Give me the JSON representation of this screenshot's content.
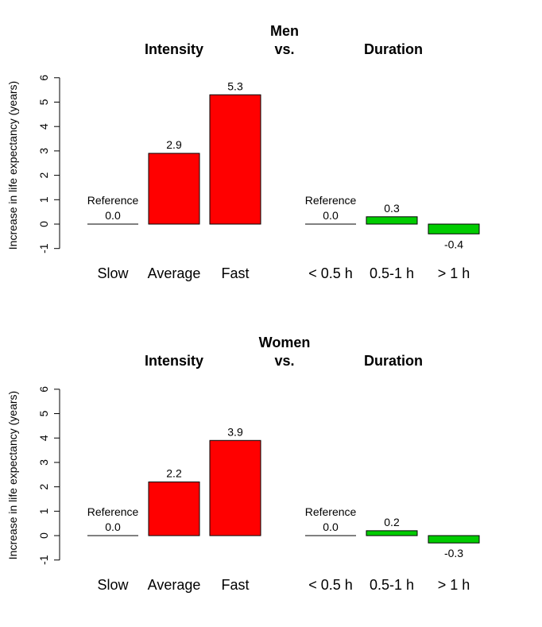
{
  "chart_data": [
    {
      "type": "bar",
      "title": "Men",
      "group_titles": [
        "Intensity",
        "vs.",
        "Duration"
      ],
      "ylabel": "Increase in life expectancy (years)",
      "ylim": [
        -1,
        6
      ],
      "yticks": [
        "-1",
        "0",
        "1",
        "2",
        "3",
        "4",
        "5",
        "6"
      ],
      "colors": {
        "intensity": "#ff0000",
        "duration": "#00cc00",
        "reference": "#000000"
      },
      "bars": [
        {
          "category": "Slow",
          "value": 0.0,
          "label": "0.0",
          "note": "Reference",
          "group": "intensity"
        },
        {
          "category": "Average",
          "value": 2.9,
          "label": "2.9",
          "note": "",
          "group": "intensity"
        },
        {
          "category": "Fast",
          "value": 5.3,
          "label": "5.3",
          "note": "",
          "group": "intensity"
        },
        {
          "category": "< 0.5 h",
          "value": 0.0,
          "label": "0.0",
          "note": "Reference",
          "group": "duration"
        },
        {
          "category": "0.5-1 h",
          "value": 0.3,
          "label": "0.3",
          "note": "",
          "group": "duration"
        },
        {
          "category": "> 1 h",
          "value": -0.4,
          "label": "-0.4",
          "note": "",
          "group": "duration"
        }
      ]
    },
    {
      "type": "bar",
      "title": "Women",
      "group_titles": [
        "Intensity",
        "vs.",
        "Duration"
      ],
      "ylabel": "Increase in life expectancy (years)",
      "ylim": [
        -1,
        6
      ],
      "yticks": [
        "-1",
        "0",
        "1",
        "2",
        "3",
        "4",
        "5",
        "6"
      ],
      "colors": {
        "intensity": "#ff0000",
        "duration": "#00cc00",
        "reference": "#000000"
      },
      "bars": [
        {
          "category": "Slow",
          "value": 0.0,
          "label": "0.0",
          "note": "Reference",
          "group": "intensity"
        },
        {
          "category": "Average",
          "value": 2.2,
          "label": "2.2",
          "note": "",
          "group": "intensity"
        },
        {
          "category": "Fast",
          "value": 3.9,
          "label": "3.9",
          "note": "",
          "group": "intensity"
        },
        {
          "category": "< 0.5 h",
          "value": 0.0,
          "label": "0.0",
          "note": "Reference",
          "group": "duration"
        },
        {
          "category": "0.5-1 h",
          "value": 0.2,
          "label": "0.2",
          "note": "",
          "group": "duration"
        },
        {
          "category": "> 1 h",
          "value": -0.3,
          "label": "-0.3",
          "note": "",
          "group": "duration"
        }
      ]
    }
  ]
}
